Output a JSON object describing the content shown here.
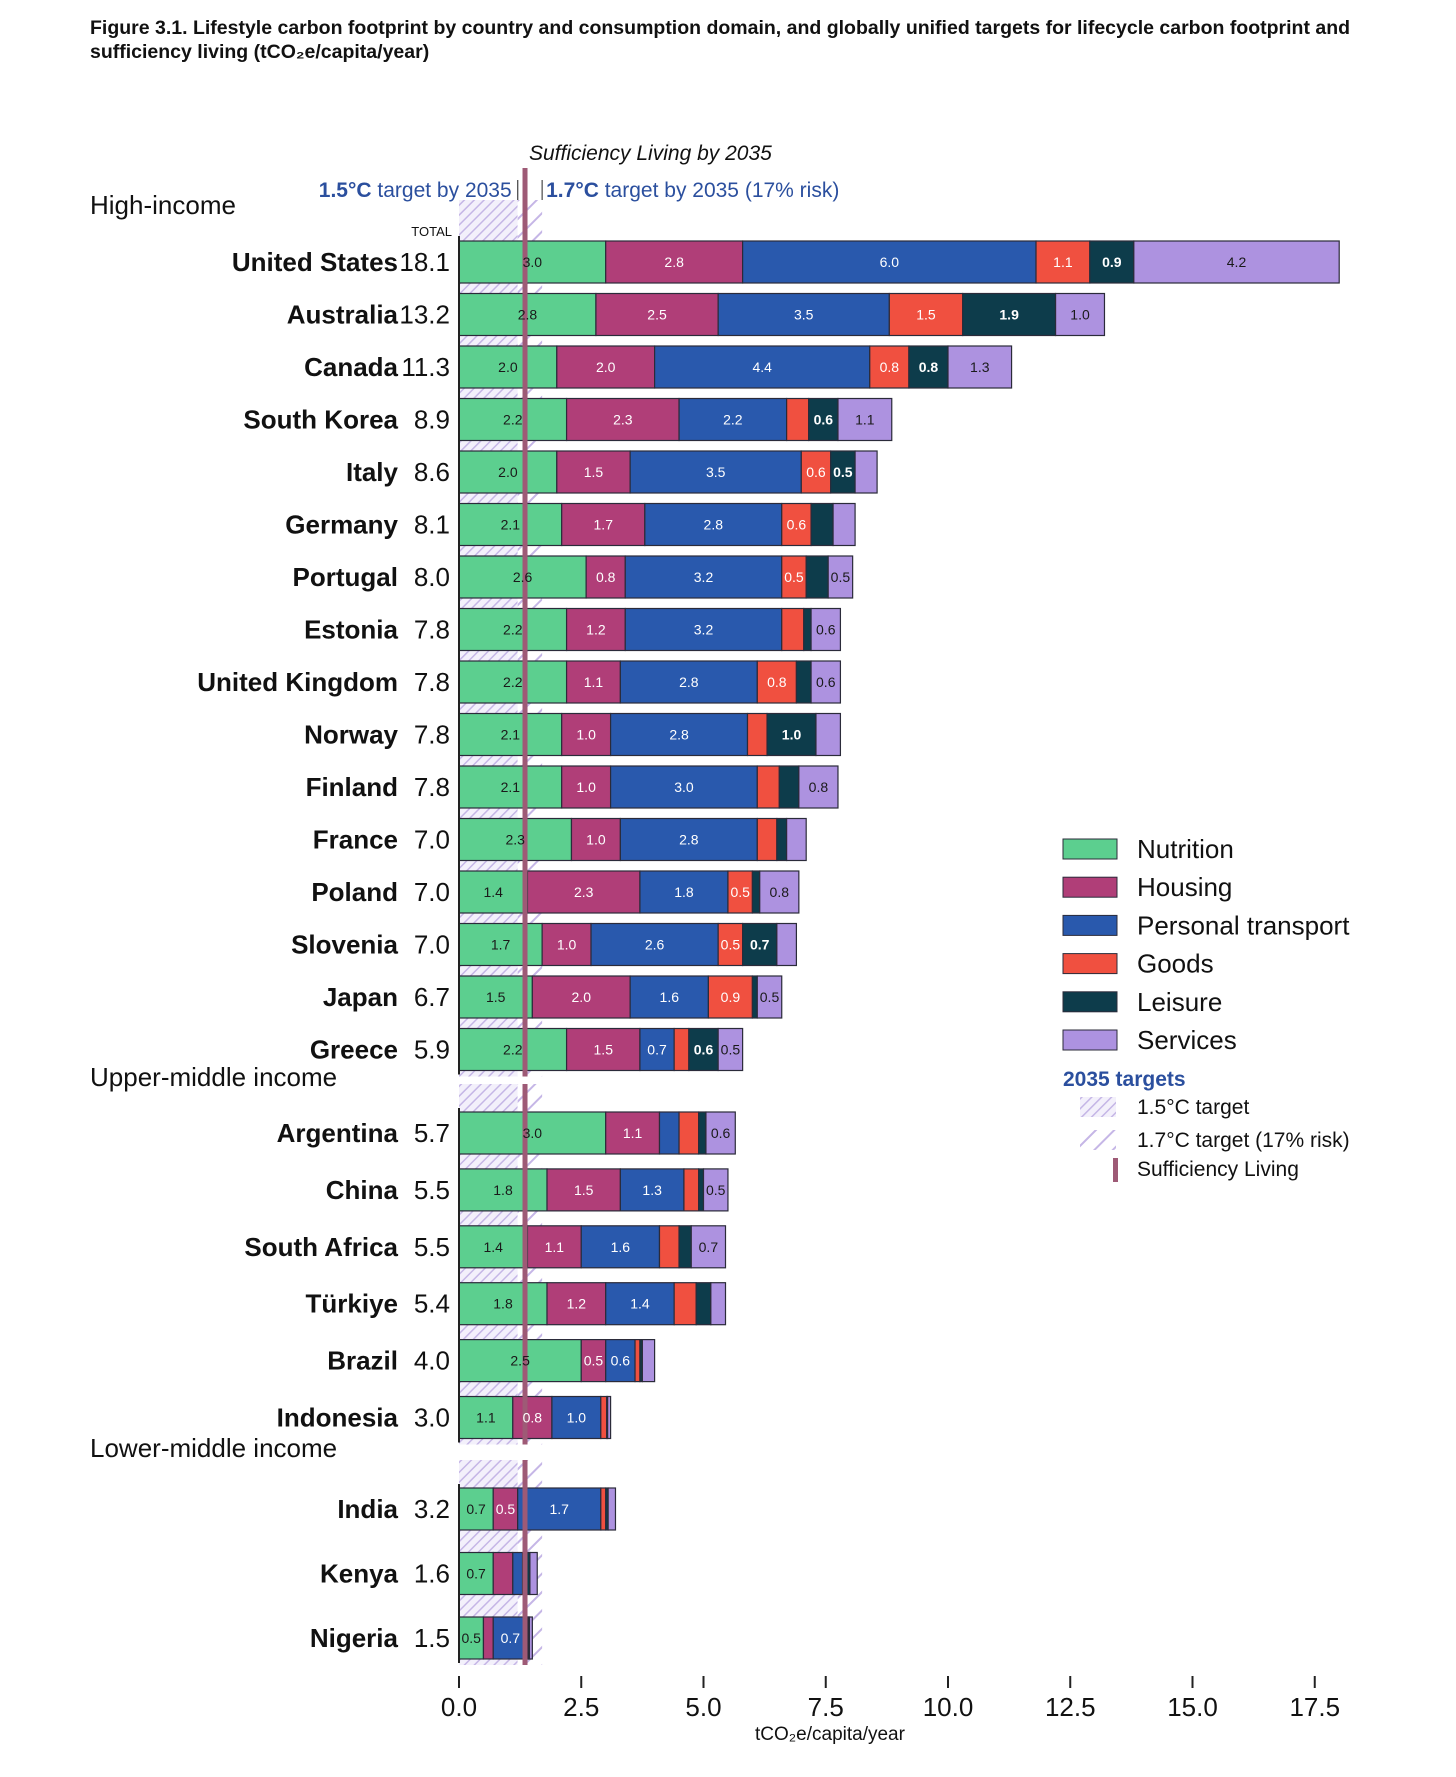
{
  "figure_title": "Figure 3.1. Lifestyle carbon footprint by country and consumption domain, and globally unified targets for lifecycle carbon footprint and sufficiency living (tCO₂e/capita/year)",
  "chart_data": {
    "type": "bar",
    "orientation": "horizontal",
    "stacked": true,
    "title": "Figure 3.1. Lifestyle carbon footprint by country and consumption domain, and globally unified targets for lifecycle carbon footprint and sufficiency living (tCO₂e/capita/year)",
    "xlabel": "tCO₂e/capita/year",
    "xlim": [
      0,
      18.5
    ],
    "xticks": [
      "0.0",
      "2.5",
      "5.0",
      "7.5",
      "10.0",
      "12.5",
      "15.0",
      "17.5"
    ],
    "total_header": "TOTAL",
    "domains": [
      {
        "name": "Nutrition",
        "color": "#5ccf8f"
      },
      {
        "name": "Housing",
        "color": "#b03e78"
      },
      {
        "name": "Personal transport",
        "color": "#2959ad"
      },
      {
        "name": "Goods",
        "color": "#f05040"
      },
      {
        "name": "Leisure",
        "color": "#0d3c4b"
      },
      {
        "name": "Services",
        "color": "#ad92e0"
      }
    ],
    "groups": [
      {
        "name": "High-income",
        "countries": [
          {
            "name": "United States",
            "total": "18.1",
            "values": [
              3.0,
              2.8,
              6.0,
              1.1,
              0.9,
              4.2
            ],
            "labels": [
              "3.0",
              "2.8",
              "6.0",
              "1.1",
              "0.9",
              "4.2"
            ]
          },
          {
            "name": "Australia",
            "total": "13.2",
            "values": [
              2.8,
              2.5,
              3.5,
              1.5,
              1.9,
              1.0
            ],
            "labels": [
              "2.8",
              "2.5",
              "3.5",
              "1.5",
              "1.9",
              "1.0"
            ]
          },
          {
            "name": "Canada",
            "total": "11.3",
            "values": [
              2.0,
              2.0,
              4.4,
              0.8,
              0.8,
              1.3
            ],
            "labels": [
              "2.0",
              "2.0",
              "4.4",
              "0.8",
              "0.8",
              "1.3"
            ]
          },
          {
            "name": "South Korea",
            "total": "8.9",
            "values": [
              2.2,
              2.3,
              2.2,
              0.45,
              0.6,
              1.1
            ],
            "labels": [
              "2.2",
              "2.3",
              "2.2",
              "",
              "0.6",
              "1.1"
            ]
          },
          {
            "name": "Italy",
            "total": "8.6",
            "values": [
              2.0,
              1.5,
              3.5,
              0.6,
              0.5,
              0.45
            ],
            "labels": [
              "2.0",
              "1.5",
              "3.5",
              "0.6",
              "0.5",
              ""
            ]
          },
          {
            "name": "Germany",
            "total": "8.1",
            "values": [
              2.1,
              1.7,
              2.8,
              0.6,
              0.45,
              0.45
            ],
            "labels": [
              "2.1",
              "1.7",
              "2.8",
              "0.6",
              "",
              ""
            ]
          },
          {
            "name": "Portugal",
            "total": "8.0",
            "values": [
              2.6,
              0.8,
              3.2,
              0.5,
              0.45,
              0.5
            ],
            "labels": [
              "2.6",
              "0.8",
              "3.2",
              "0.5",
              "",
              "0.5"
            ]
          },
          {
            "name": "Estonia",
            "total": "7.8",
            "values": [
              2.2,
              1.2,
              3.2,
              0.45,
              0.15,
              0.6
            ],
            "labels": [
              "2.2",
              "1.2",
              "3.2",
              "",
              "",
              "0.6"
            ]
          },
          {
            "name": "United Kingdom",
            "total": "7.8",
            "values": [
              2.2,
              1.1,
              2.8,
              0.8,
              0.3,
              0.6
            ],
            "labels": [
              "2.2",
              "1.1",
              "2.8",
              "0.8",
              "",
              "0.6"
            ]
          },
          {
            "name": "Norway",
            "total": "7.8",
            "values": [
              2.1,
              1.0,
              2.8,
              0.4,
              1.0,
              0.5
            ],
            "labels": [
              "2.1",
              "1.0",
              "2.8",
              "",
              "1.0",
              ""
            ]
          },
          {
            "name": "Finland",
            "total": "7.8",
            "values": [
              2.1,
              1.0,
              3.0,
              0.45,
              0.4,
              0.8
            ],
            "labels": [
              "2.1",
              "1.0",
              "3.0",
              "",
              "",
              "0.8"
            ]
          },
          {
            "name": "France",
            "total": "7.0",
            "values": [
              2.3,
              1.0,
              2.8,
              0.4,
              0.2,
              0.4
            ],
            "labels": [
              "2.3",
              "1.0",
              "2.8",
              "",
              "",
              ""
            ]
          },
          {
            "name": "Poland",
            "total": "7.0",
            "values": [
              1.4,
              2.3,
              1.8,
              0.5,
              0.15,
              0.8
            ],
            "labels": [
              "1.4",
              "2.3",
              "1.8",
              "0.5",
              "",
              "0.8"
            ]
          },
          {
            "name": "Slovenia",
            "total": "7.0",
            "values": [
              1.7,
              1.0,
              2.6,
              0.5,
              0.7,
              0.4
            ],
            "labels": [
              "1.7",
              "1.0",
              "2.6",
              "0.5",
              "0.7",
              ""
            ]
          },
          {
            "name": "Japan",
            "total": "6.7",
            "values": [
              1.5,
              2.0,
              1.6,
              0.9,
              0.1,
              0.5
            ],
            "labels": [
              "1.5",
              "2.0",
              "1.6",
              "0.9",
              "",
              "0.5"
            ]
          },
          {
            "name": "Greece",
            "total": "5.9",
            "values": [
              2.2,
              1.5,
              0.7,
              0.3,
              0.6,
              0.5
            ],
            "labels": [
              "2.2",
              "1.5",
              "0.7",
              "",
              "0.6",
              "0.5"
            ]
          }
        ]
      },
      {
        "name": "Upper-middle income",
        "countries": [
          {
            "name": "Argentina",
            "total": "5.7",
            "values": [
              3.0,
              1.1,
              0.4,
              0.4,
              0.15,
              0.6
            ],
            "labels": [
              "3.0",
              "1.1",
              "",
              "",
              "",
              "0.6"
            ]
          },
          {
            "name": "China",
            "total": "5.5",
            "values": [
              1.8,
              1.5,
              1.3,
              0.3,
              0.1,
              0.5
            ],
            "labels": [
              "1.8",
              "1.5",
              "1.3",
              "",
              "",
              "0.5"
            ]
          },
          {
            "name": "South Africa",
            "total": "5.5",
            "values": [
              1.4,
              1.1,
              1.6,
              0.4,
              0.25,
              0.7
            ],
            "labels": [
              "1.4",
              "1.1",
              "1.6",
              "",
              "",
              "0.7"
            ]
          },
          {
            "name": "Türkiye",
            "total": "5.4",
            "values": [
              1.8,
              1.2,
              1.4,
              0.45,
              0.3,
              0.3
            ],
            "labels": [
              "1.8",
              "1.2",
              "1.4",
              "",
              "",
              ""
            ]
          },
          {
            "name": "Brazil",
            "total": "4.0",
            "values": [
              2.5,
              0.5,
              0.6,
              0.1,
              0.05,
              0.25
            ],
            "labels": [
              "2.5",
              "0.5",
              "0.6",
              "",
              "",
              ""
            ]
          },
          {
            "name": "Indonesia",
            "total": "3.0",
            "values": [
              1.1,
              0.8,
              1.0,
              0.12,
              0.02,
              0.06
            ],
            "labels": [
              "1.1",
              "0.8",
              "1.0",
              "",
              "",
              ""
            ]
          }
        ]
      },
      {
        "name": "Lower-middle income",
        "countries": [
          {
            "name": "India",
            "total": "3.2",
            "values": [
              0.7,
              0.5,
              1.7,
              0.1,
              0.05,
              0.15
            ],
            "labels": [
              "0.7",
              "0.5",
              "1.7",
              "",
              "",
              ""
            ]
          },
          {
            "name": "Kenya",
            "total": "1.6",
            "values": [
              0.7,
              0.4,
              0.2,
              0.05,
              0.1,
              0.15
            ],
            "labels": [
              "0.7",
              "",
              "",
              "",
              "",
              ""
            ]
          },
          {
            "name": "Nigeria",
            "total": "1.5",
            "values": [
              0.5,
              0.2,
              0.7,
              0.02,
              0.02,
              0.06
            ],
            "labels": [
              "0.5",
              "",
              "0.7",
              "",
              "",
              ""
            ]
          }
        ]
      }
    ],
    "targets": {
      "heading": "2035 targets",
      "t15": {
        "value": 1.2,
        "label_strong": "1.5°C",
        "label_rest": " target by 2035",
        "legend": "1.5°C target"
      },
      "t17": {
        "value": 1.7,
        "label_strong": "1.7°C",
        "label_rest": " target by 2035 (17% risk)",
        "legend": "1.7°C target (17% risk)"
      },
      "sufficiency": {
        "value": 1.35,
        "label": "Sufficiency Living by 2035",
        "legend": "Sufficiency Living"
      }
    },
    "legend_position": "right"
  }
}
